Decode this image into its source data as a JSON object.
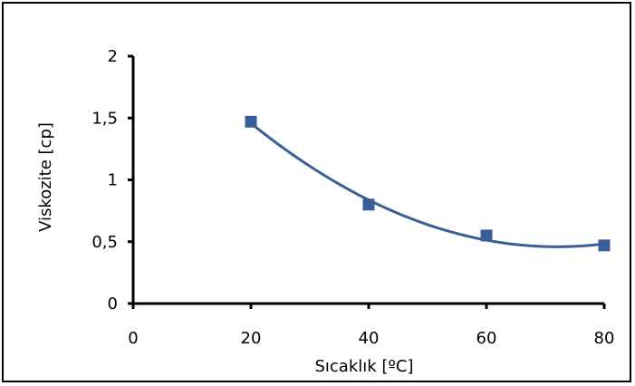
{
  "chart_data": {
    "type": "scatter",
    "xlabel": "Sıcaklık [ºC]",
    "ylabel": "Viskozite [cp]",
    "xlim": [
      0,
      80
    ],
    "ylim": [
      0,
      2
    ],
    "x_ticks": [
      0,
      20,
      40,
      60,
      80
    ],
    "y_ticks": [
      0,
      0.5,
      1,
      1.5,
      2
    ],
    "x_tick_labels": [
      "0",
      "20",
      "40",
      "60",
      "80"
    ],
    "y_tick_labels": [
      "0",
      "0,5",
      "1",
      "1,5",
      "2"
    ],
    "grid": false,
    "legend": false,
    "trendline": "polynomial (order 2)",
    "series": [
      {
        "color": "#3a5f96",
        "marker": "square",
        "x": [
          20,
          40,
          60,
          80
        ],
        "y": [
          1.47,
          0.8,
          0.55,
          0.47
        ]
      }
    ]
  }
}
